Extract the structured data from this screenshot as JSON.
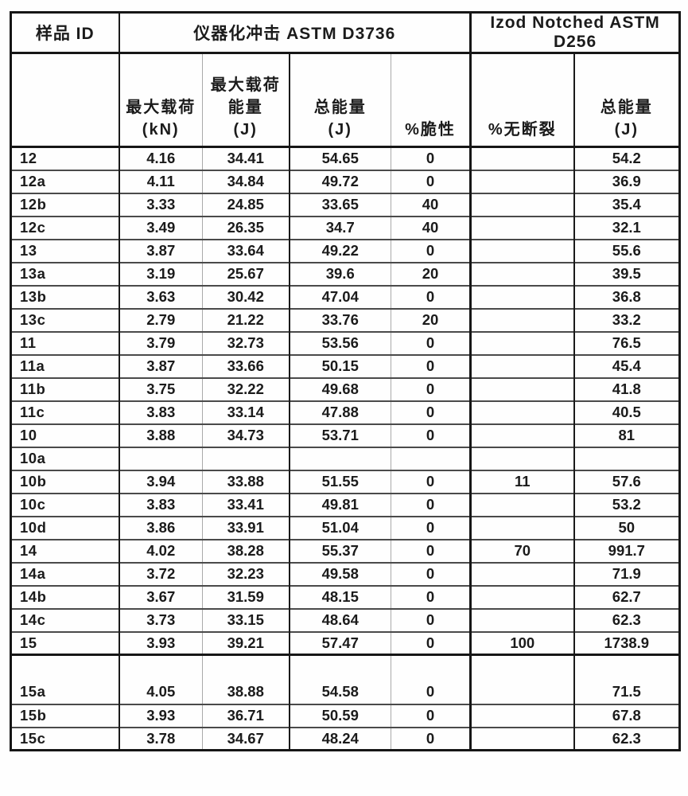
{
  "table": {
    "corner_header": "样品 ID",
    "group_headers": [
      {
        "label": "仪器化冲击 ASTM D3736",
        "colspan": 4
      },
      {
        "label": "Izod Notched ASTM D256",
        "colspan": 2
      }
    ],
    "sub_headers": [
      "最大载荷\n(kN)",
      "最大载荷\n能量\n(J)",
      "总能量\n(J)",
      "%脆性",
      "%无断裂",
      "总能量\n(J)"
    ],
    "columns_semantic": [
      "sample-id",
      "max-load-kN",
      "max-load-energy-J",
      "total-energy-J",
      "percent-brittle",
      "percent-no-break",
      "izod-total-energy-J"
    ],
    "rows": [
      {
        "id": "12",
        "values": [
          "4.16",
          "34.41",
          "54.65",
          "0",
          "",
          "54.2"
        ]
      },
      {
        "id": "12a",
        "values": [
          "4.11",
          "34.84",
          "49.72",
          "0",
          "",
          "36.9"
        ]
      },
      {
        "id": "12b",
        "values": [
          "3.33",
          "24.85",
          "33.65",
          "40",
          "",
          "35.4"
        ]
      },
      {
        "id": "12c",
        "values": [
          "3.49",
          "26.35",
          "34.7",
          "40",
          "",
          "32.1"
        ]
      },
      {
        "id": "13",
        "values": [
          "3.87",
          "33.64",
          "49.22",
          "0",
          "",
          "55.6"
        ]
      },
      {
        "id": "13a",
        "values": [
          "3.19",
          "25.67",
          "39.6",
          "20",
          "",
          "39.5"
        ]
      },
      {
        "id": "13b",
        "values": [
          "3.63",
          "30.42",
          "47.04",
          "0",
          "",
          "36.8"
        ]
      },
      {
        "id": "13c",
        "values": [
          "2.79",
          "21.22",
          "33.76",
          "20",
          "",
          "33.2"
        ]
      },
      {
        "id": "11",
        "values": [
          "3.79",
          "32.73",
          "53.56",
          "0",
          "",
          "76.5"
        ]
      },
      {
        "id": "11a",
        "values": [
          "3.87",
          "33.66",
          "50.15",
          "0",
          "",
          "45.4"
        ]
      },
      {
        "id": "11b",
        "values": [
          "3.75",
          "32.22",
          "49.68",
          "0",
          "",
          "41.8"
        ]
      },
      {
        "id": "11c",
        "values": [
          "3.83",
          "33.14",
          "47.88",
          "0",
          "",
          "40.5"
        ]
      },
      {
        "id": "10",
        "values": [
          "3.88",
          "34.73",
          "53.71",
          "0",
          "",
          "81"
        ]
      },
      {
        "id": "10a",
        "values": [
          "",
          "",
          "",
          "",
          "",
          ""
        ]
      },
      {
        "id": "10b",
        "values": [
          "3.94",
          "33.88",
          "51.55",
          "0",
          "11",
          "57.6"
        ]
      },
      {
        "id": "10c",
        "values": [
          "3.83",
          "33.41",
          "49.81",
          "0",
          "",
          "53.2"
        ]
      },
      {
        "id": "10d",
        "values": [
          "3.86",
          "33.91",
          "51.04",
          "0",
          "",
          "50"
        ]
      },
      {
        "id": "14",
        "values": [
          "4.02",
          "38.28",
          "55.37",
          "0",
          "70",
          "991.7"
        ]
      },
      {
        "id": "14a",
        "values": [
          "3.72",
          "32.23",
          "49.58",
          "0",
          "",
          "71.9"
        ]
      },
      {
        "id": "14b",
        "values": [
          "3.67",
          "31.59",
          "48.15",
          "0",
          "",
          "62.7"
        ]
      },
      {
        "id": "14c",
        "values": [
          "3.73",
          "33.15",
          "48.64",
          "0",
          "",
          "62.3"
        ]
      },
      {
        "id": "15",
        "values": [
          "3.93",
          "39.21",
          "57.47",
          "0",
          "100",
          "1738.9"
        ]
      },
      {
        "id": "15a",
        "values": [
          "4.05",
          "38.88",
          "54.58",
          "0",
          "",
          "71.5"
        ],
        "tall": true,
        "thick_top": true
      },
      {
        "id": "15b",
        "values": [
          "3.93",
          "36.71",
          "50.59",
          "0",
          "",
          "67.8"
        ]
      },
      {
        "id": "15c",
        "values": [
          "3.78",
          "34.67",
          "48.24",
          "0",
          "",
          "62.3"
        ]
      }
    ]
  }
}
